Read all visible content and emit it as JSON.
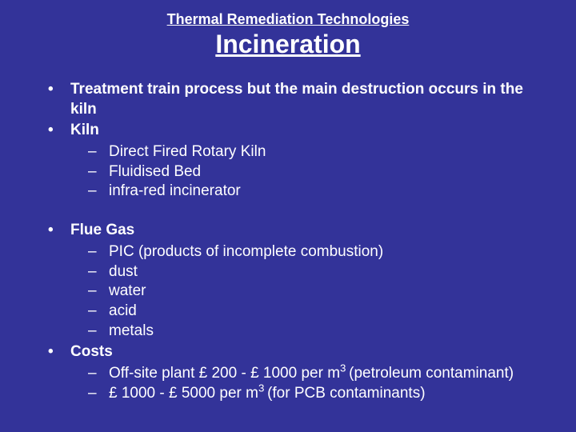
{
  "background_color": "#333399",
  "text_color": "#ffffff",
  "font_family": "Arial",
  "subtitle": "Thermal Remediation Technologies",
  "title": "Incineration",
  "bullets": [
    {
      "text": "Treatment train process but the main destruction occurs in the kiln",
      "children": []
    },
    {
      "text": "Kiln",
      "children": [
        "Direct Fired Rotary Kiln",
        "Fluidised Bed",
        "infra-red incinerator"
      ]
    }
  ],
  "bullets2": [
    {
      "text": "Flue Gas",
      "children": [
        "PIC (products of incomplete combustion)",
        "dust",
        "water",
        "acid",
        "metals"
      ]
    },
    {
      "text": "Costs",
      "children_html": [
        "Off-site plant  £ 200 - £ 1000 per m<sup>3 </sup>(petroleum contaminant)",
        "£ 1000 - £ 5000 per m<sup>3 </sup>(for PCB contaminants)"
      ]
    }
  ]
}
